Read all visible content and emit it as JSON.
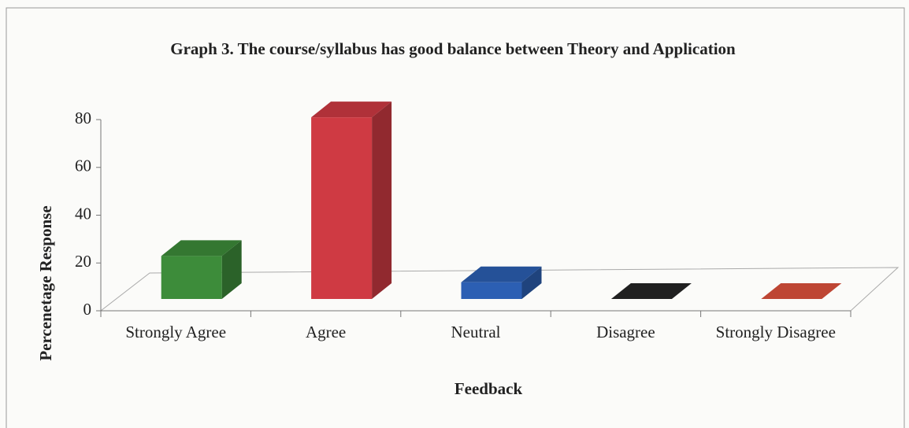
{
  "chart_data": {
    "type": "bar3d",
    "title": "Graph 3. The course/syllabus has good balance between Theory and Application",
    "x_label": "Feedback",
    "y_label": "Percenetage Response",
    "categories": [
      "Strongly Agree",
      "Agree",
      "Neutral",
      "Disagree",
      "Strongly Disagree"
    ],
    "values": [
      18,
      76,
      7,
      0,
      0
    ],
    "colors": [
      "#3d8c3a",
      "#cf3a43",
      "#2c5fb3",
      "#262626",
      "#e0523d"
    ],
    "ylim": [
      0,
      80
    ],
    "yticks": [
      0,
      20,
      40,
      60,
      80
    ],
    "grid": false
  }
}
